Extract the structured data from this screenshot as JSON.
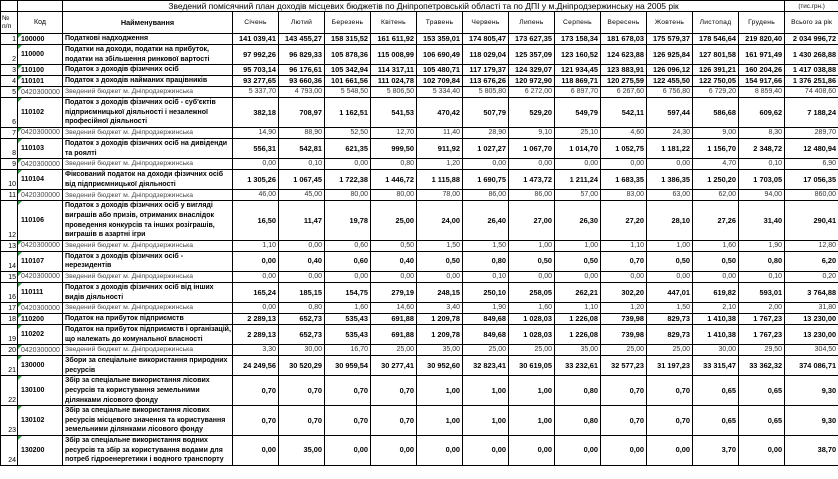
{
  "title": "Зведений помісячний план доходів місцевих бюджетів по Дніпропетровській області та по ДПІ у м.Дніпродзержинську на 2005 рік",
  "unit_note": "(тис.грн.)",
  "table": {
    "headers": {
      "num": "№\nп/п",
      "code": "Код",
      "name": "Найменування",
      "months": [
        "Січень",
        "Лютий",
        "Березень",
        "Квітень",
        "Травень",
        "Червень",
        "Липень",
        "Серпень",
        "Вересень",
        "Жовтень",
        "Листопад",
        "Грудень"
      ],
      "total": "Всього за рік"
    },
    "rows": [
      {
        "n": 1,
        "code": "100000",
        "style": "main",
        "name": "Податкові надходження",
        "values": [
          "141 039,41",
          "143 455,27",
          "158 315,52",
          "161 611,92",
          "153 359,01",
          "174 805,47",
          "173 627,35",
          "173 158,34",
          "181 678,03",
          "175 579,37",
          "178 546,64",
          "219 820,40",
          "2 034 996,72"
        ]
      },
      {
        "n": 2,
        "code": "110000",
        "style": "main",
        "name": "Податки на доходи, податки на прибуток, податки на збільшення ринкової вартості",
        "values": [
          "97 992,26",
          "96 829,33",
          "105 878,36",
          "115 008,99",
          "106 690,49",
          "118 029,04",
          "125 357,09",
          "123 160,52",
          "124 623,88",
          "126 925,84",
          "127 801,58",
          "161 971,49",
          "1 430 268,88"
        ]
      },
      {
        "n": 3,
        "code": "110100",
        "style": "main",
        "name": "Податок з доходів фізичних осіб",
        "values": [
          "95 703,14",
          "96 176,61",
          "105 342,94",
          "114 317,11",
          "105 480,71",
          "117 179,37",
          "124 329,07",
          "121 934,45",
          "123 883,91",
          "126 096,12",
          "126 391,21",
          "160 204,26",
          "1 417 038,88"
        ]
      },
      {
        "n": 4,
        "code": "110101",
        "style": "main",
        "name": "Податок з доходів найманих працівників",
        "values": [
          "93 277,65",
          "93 660,36",
          "101 661,56",
          "111 024,78",
          "102 709,84",
          "113 676,26",
          "120 972,90",
          "118 869,71",
          "120 275,59",
          "122 455,50",
          "122 750,05",
          "154 917,66",
          "1 376 251,86"
        ]
      },
      {
        "n": 5,
        "code": "0420300000",
        "style": "sub",
        "name": "Зведений бюджет м. Дніпродзержинська",
        "values": [
          "5 337,70",
          "4 793,00",
          "5 548,50",
          "5 806,50",
          "5 334,40",
          "5 805,80",
          "6 272,00",
          "6 897,70",
          "6 267,60",
          "6 756,80",
          "6 729,20",
          "8 859,40",
          "74 408,60"
        ]
      },
      {
        "n": 6,
        "code": "110102",
        "style": "main",
        "name": "Податок з доходів фізичних осіб - суб'єктів підприємницької діяльності і незалежної професійної діяльності",
        "values": [
          "382,18",
          "708,97",
          "1 162,51",
          "541,53",
          "470,42",
          "507,79",
          "529,20",
          "549,79",
          "542,11",
          "597,44",
          "586,68",
          "609,62",
          "7 188,24"
        ]
      },
      {
        "n": 7,
        "code": "0420300000",
        "style": "sub",
        "name": "Зведений бюджет м. Дніпродзержинська",
        "values": [
          "14,90",
          "88,90",
          "52,50",
          "12,70",
          "11,40",
          "28,90",
          "9,10",
          "25,10",
          "4,60",
          "24,30",
          "9,00",
          "8,30",
          "289,70"
        ]
      },
      {
        "n": 8,
        "code": "110103",
        "style": "main",
        "name": "Податок з доходів фізичних осіб на дивіденди та роялті",
        "values": [
          "556,31",
          "542,81",
          "621,35",
          "999,50",
          "911,92",
          "1 027,27",
          "1 067,70",
          "1 014,70",
          "1 052,75",
          "1 181,22",
          "1 156,70",
          "2 348,72",
          "12 480,94"
        ]
      },
      {
        "n": 9,
        "code": "0420300000",
        "style": "sub",
        "name": "Зведений бюджет м. Дніпродзержинська",
        "values": [
          "0,00",
          "0,10",
          "0,00",
          "0,80",
          "1,20",
          "0,00",
          "0,00",
          "0,00",
          "0,00",
          "0,00",
          "4,70",
          "0,10",
          "6,90"
        ]
      },
      {
        "n": 10,
        "code": "110104",
        "style": "main",
        "name": "Фіксований податок на доходи фізичних осіб від підприємницької діяльності",
        "values": [
          "1 305,26",
          "1 067,45",
          "1 722,38",
          "1 446,72",
          "1 115,88",
          "1 690,75",
          "1 473,72",
          "1 211,24",
          "1 683,35",
          "1 386,35",
          "1 250,20",
          "1 703,05",
          "17 056,35"
        ]
      },
      {
        "n": 11,
        "code": "0420300000",
        "style": "sub",
        "name": "Зведений бюджет м. Дніпродзержинська",
        "values": [
          "46,00",
          "45,00",
          "80,00",
          "80,00",
          "78,00",
          "86,00",
          "86,00",
          "57,00",
          "83,00",
          "63,00",
          "62,00",
          "94,00",
          "860,00"
        ]
      },
      {
        "n": 12,
        "code": "110106",
        "style": "main",
        "name": "Податок з доходів фізичних осіб у вигляді виграшів або  призів, отриманих внаслідок проведення конкурсів та інших розіграшів, виграшів в азартні ігри",
        "values": [
          "16,50",
          "11,47",
          "19,78",
          "25,00",
          "24,00",
          "26,40",
          "27,00",
          "26,30",
          "27,20",
          "28,10",
          "27,26",
          "31,40",
          "290,41"
        ]
      },
      {
        "n": 13,
        "code": "0420300000",
        "style": "sub",
        "name": "Зведений бюджет м. Дніпродзержинська",
        "values": [
          "1,10",
          "0,00",
          "0,60",
          "0,50",
          "1,50",
          "1,50",
          "1,00",
          "1,00",
          "1,10",
          "1,00",
          "1,60",
          "1,90",
          "12,80"
        ]
      },
      {
        "n": 14,
        "code": "110107",
        "style": "main",
        "name": "Податок з доходів фізичних осіб - нерезидентів",
        "values": [
          "0,00",
          "0,40",
          "0,60",
          "0,40",
          "0,50",
          "0,80",
          "0,50",
          "0,50",
          "0,70",
          "0,50",
          "0,50",
          "0,80",
          "6,20"
        ]
      },
      {
        "n": 15,
        "code": "0420300000",
        "style": "sub",
        "name": "Зведений бюджет м. Дніпродзержинська",
        "values": [
          "0,00",
          "0,00",
          "0,00",
          "0,00",
          "0,00",
          "0,10",
          "0,00",
          "0,00",
          "0,00",
          "0,00",
          "0,00",
          "0,10",
          "0,20"
        ]
      },
      {
        "n": 16,
        "code": "110111",
        "style": "main",
        "name": "Податок з доходів фізичних осіб від інших видів діяльності",
        "values": [
          "165,24",
          "185,15",
          "154,75",
          "279,19",
          "248,15",
          "250,10",
          "258,05",
          "262,21",
          "302,20",
          "447,01",
          "619,82",
          "593,01",
          "3 764,88"
        ]
      },
      {
        "n": 17,
        "code": "0420300000",
        "style": "sub",
        "name": "Зведений бюджет м. Дніпродзержинська",
        "values": [
          "0,00",
          "0,80",
          "1,60",
          "14,60",
          "3,40",
          "1,90",
          "1,60",
          "1,10",
          "1,20",
          "1,50",
          "2,10",
          "2,00",
          "31,80"
        ]
      },
      {
        "n": 18,
        "code": "110200",
        "style": "main",
        "name": "Податок на прибуток підприємств",
        "values": [
          "2 289,13",
          "652,73",
          "535,43",
          "691,88",
          "1 209,78",
          "849,68",
          "1 028,03",
          "1 226,08",
          "739,98",
          "829,73",
          "1 410,38",
          "1 767,23",
          "13 230,00"
        ]
      },
      {
        "n": 19,
        "code": "110202",
        "style": "main",
        "name": "Податок на прибуток підприємств і організацій, що належать до комунальної власності",
        "values": [
          "2 289,13",
          "652,73",
          "535,43",
          "691,88",
          "1 209,78",
          "849,68",
          "1 028,03",
          "1 226,08",
          "739,98",
          "829,73",
          "1 410,38",
          "1 767,23",
          "13 230,00"
        ]
      },
      {
        "n": 20,
        "code": "0420300000",
        "style": "sub",
        "name": "Зведений бюджет м. Дніпродзержинська",
        "values": [
          "3,30",
          "30,00",
          "16,70",
          "25,00",
          "35,00",
          "25,00",
          "25,00",
          "35,00",
          "25,00",
          "25,00",
          "30,00",
          "29,50",
          "304,50"
        ]
      },
      {
        "n": 21,
        "code": "130000",
        "style": "main",
        "name": "Збори за спеціальне використання природних ресурсів",
        "values": [
          "24 249,56",
          "30 520,29",
          "30 959,54",
          "30 277,41",
          "30 952,60",
          "32 823,41",
          "30 619,05",
          "33 232,61",
          "32 577,23",
          "31 197,23",
          "33 315,47",
          "33 362,32",
          "374 086,71"
        ]
      },
      {
        "n": 22,
        "code": "130100",
        "style": "main",
        "name": "Збір за  спеціальне використання лісових ресурсів та користування земельними ділянками лісового фонду",
        "values": [
          "0,70",
          "0,70",
          "0,70",
          "0,70",
          "1,00",
          "1,00",
          "1,00",
          "0,80",
          "0,70",
          "0,70",
          "0,65",
          "0,65",
          "9,30"
        ]
      },
      {
        "n": 23,
        "code": "130102",
        "style": "main",
        "name": "Збір за спеціальне використання лісових ресурсів місцевого значення та користування земельними ділянками лісового фонду",
        "values": [
          "0,70",
          "0,70",
          "0,70",
          "0,70",
          "1,00",
          "1,00",
          "1,00",
          "0,80",
          "0,70",
          "0,70",
          "0,65",
          "0,65",
          "9,30"
        ]
      },
      {
        "n": 24,
        "code": "130200",
        "style": "main",
        "name": "Збір за спеціальне використання водних ресурсів та збір за користування водами для потреб гідроенергетики і водного транспорту",
        "values": [
          "0,00",
          "35,00",
          "0,00",
          "0,00",
          "0,00",
          "0,00",
          "0,00",
          "0,00",
          "0,00",
          "0,00",
          "3,70",
          "0,00",
          "38,70"
        ]
      }
    ]
  }
}
